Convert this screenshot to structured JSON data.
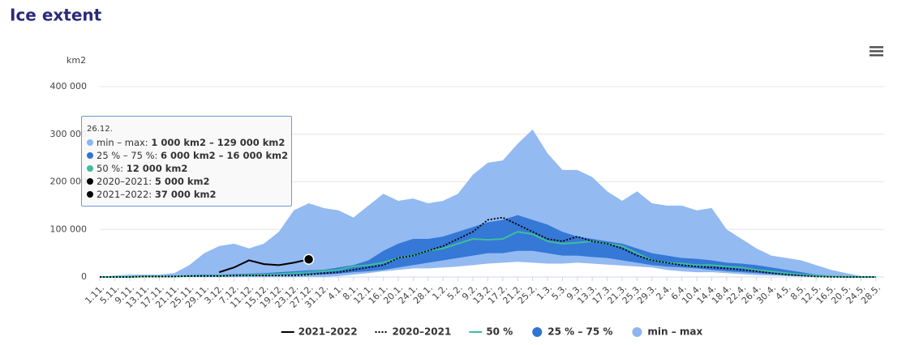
{
  "chart_data": {
    "type": "area",
    "title": "Ice extent",
    "y_axis_title": "km2",
    "ylim": [
      0,
      400000
    ],
    "yticks": [
      0,
      {
        "value": 100000,
        "label": "100 000"
      },
      {
        "value": 200000,
        "label": "200 000"
      },
      {
        "value": 300000,
        "label": "300 000"
      },
      {
        "value": 400000,
        "label": "400 000"
      }
    ],
    "grid": true,
    "legend": "bottom",
    "categories": [
      "1.11.",
      "5.11.",
      "9.11.",
      "13.11.",
      "17.11.",
      "21.11.",
      "25.11.",
      "29.11.",
      "3.12.",
      "7.12.",
      "11.12.",
      "15.12.",
      "19.12.",
      "23.12.",
      "27.12.",
      "31.12.",
      "4.1.",
      "8.1.",
      "12.1.",
      "16.1.",
      "20.1.",
      "24.1.",
      "28.1.",
      "1.2.",
      "5.2.",
      "9.2.",
      "13.2.",
      "17.2.",
      "21.2.",
      "25.2.",
      "1.3.",
      "5.3.",
      "9.3.",
      "13.3.",
      "17.3.",
      "21.3.",
      "25.3.",
      "29.3.",
      "2.4.",
      "6.4.",
      "10.4.",
      "14.4.",
      "18.4.",
      "22.4.",
      "26.4.",
      "30.4.",
      "4.5.",
      "8.5.",
      "12.5.",
      "16.5.",
      "20.5.",
      "24.5.",
      "28.5."
    ],
    "series": [
      {
        "name": "2021–2022",
        "type": "line",
        "color": "#000000",
        "dash": "solid",
        "values": [
          null,
          null,
          null,
          null,
          null,
          null,
          null,
          null,
          10000,
          20000,
          35000,
          27000,
          25000,
          30000,
          37000,
          null,
          null,
          null,
          null,
          null,
          null,
          null,
          null,
          null,
          null,
          null,
          null,
          null,
          null,
          null,
          null,
          null,
          null,
          null,
          null,
          null,
          null,
          null,
          null,
          null,
          null,
          null,
          null,
          null,
          null,
          null,
          null,
          null,
          null,
          null,
          null,
          null,
          null
        ]
      },
      {
        "name": "2020–2021",
        "type": "line",
        "color": "#000000",
        "dash": "dotted",
        "values": [
          0,
          0,
          0,
          1000,
          1000,
          1000,
          2000,
          2000,
          2000,
          3000,
          3000,
          3000,
          3000,
          3000,
          5000,
          8000,
          10000,
          15000,
          20000,
          25000,
          40000,
          45000,
          55000,
          65000,
          80000,
          95000,
          120000,
          125000,
          110000,
          95000,
          80000,
          75000,
          85000,
          75000,
          70000,
          60000,
          45000,
          35000,
          30000,
          25000,
          22000,
          20000,
          18000,
          15000,
          12000,
          8000,
          5000,
          3000,
          1000,
          0,
          0,
          0,
          0
        ]
      },
      {
        "name": "50 %",
        "type": "line",
        "color": "#3cbf9b",
        "dash": "solid",
        "values": [
          0,
          0,
          0,
          1000,
          1000,
          1000,
          2000,
          2000,
          3000,
          3000,
          4000,
          5000,
          6000,
          8000,
          10000,
          12000,
          15000,
          22000,
          25000,
          30000,
          40000,
          45000,
          55000,
          60000,
          70000,
          80000,
          78000,
          80000,
          95000,
          90000,
          75000,
          70000,
          72000,
          75000,
          70000,
          65000,
          50000,
          35000,
          30000,
          28000,
          25000,
          25000,
          22000,
          20000,
          15000,
          12000,
          8000,
          5000,
          3000,
          1000,
          0,
          0,
          0
        ]
      },
      {
        "name": "25 % – 75 %",
        "type": "arearange",
        "color": "#2f74d4",
        "low": [
          0,
          0,
          0,
          0,
          0,
          0,
          0,
          1000,
          1000,
          1000,
          2000,
          2000,
          3000,
          4000,
          5000,
          5000,
          7000,
          10000,
          12000,
          15000,
          20000,
          25000,
          30000,
          35000,
          40000,
          45000,
          50000,
          50000,
          55000,
          55000,
          50000,
          45000,
          45000,
          42000,
          40000,
          35000,
          30000,
          25000,
          22000,
          20000,
          18000,
          15000,
          12000,
          10000,
          8000,
          6000,
          4000,
          2000,
          1000,
          0,
          0,
          0,
          0
        ],
        "high": [
          0,
          1000,
          1000,
          2000,
          2000,
          3000,
          4000,
          5000,
          5000,
          6000,
          7000,
          8000,
          10000,
          12000,
          14000,
          15000,
          20000,
          25000,
          35000,
          55000,
          70000,
          80000,
          80000,
          85000,
          95000,
          105000,
          115000,
          120000,
          130000,
          120000,
          110000,
          95000,
          85000,
          80000,
          75000,
          70000,
          60000,
          50000,
          45000,
          40000,
          38000,
          35000,
          30000,
          28000,
          25000,
          20000,
          15000,
          10000,
          5000,
          3000,
          1000,
          0,
          0
        ]
      },
      {
        "name": "min – max",
        "type": "arearange",
        "color": "#8db6f0",
        "low": [
          0,
          0,
          0,
          0,
          0,
          0,
          0,
          0,
          0,
          0,
          0,
          0,
          0,
          0,
          0,
          0,
          2000,
          5000,
          8000,
          12000,
          15000,
          18000,
          18000,
          20000,
          22000,
          25000,
          28000,
          30000,
          32000,
          30000,
          28000,
          28000,
          30000,
          28000,
          26000,
          24000,
          22000,
          20000,
          15000,
          12000,
          10000,
          10000,
          8000,
          6000,
          4000,
          3000,
          2000,
          1000,
          0,
          0,
          0,
          0,
          0
        ],
        "high": [
          0,
          3000,
          5000,
          5000,
          5000,
          8000,
          25000,
          50000,
          65000,
          70000,
          60000,
          70000,
          95000,
          140000,
          155000,
          145000,
          140000,
          125000,
          150000,
          175000,
          160000,
          165000,
          155000,
          160000,
          175000,
          215000,
          240000,
          245000,
          280000,
          310000,
          260000,
          225000,
          225000,
          210000,
          180000,
          160000,
          180000,
          155000,
          150000,
          150000,
          140000,
          145000,
          100000,
          80000,
          60000,
          45000,
          40000,
          35000,
          25000,
          15000,
          8000,
          2000,
          0
        ]
      }
    ],
    "tooltip": {
      "date": "26.12.",
      "items": [
        {
          "label": "min – max: ",
          "value": "1 000 km2 – 129 000 km2"
        },
        {
          "label": "25 % – 75 %: ",
          "value": "6 000 km2 – 16 000 km2"
        },
        {
          "label": "50 %: ",
          "value": "12 000 km2"
        },
        {
          "label": "2020–2021: ",
          "value": "5 000 km2"
        },
        {
          "label": "2021–2022: ",
          "value": "37 000 km2"
        }
      ]
    }
  }
}
